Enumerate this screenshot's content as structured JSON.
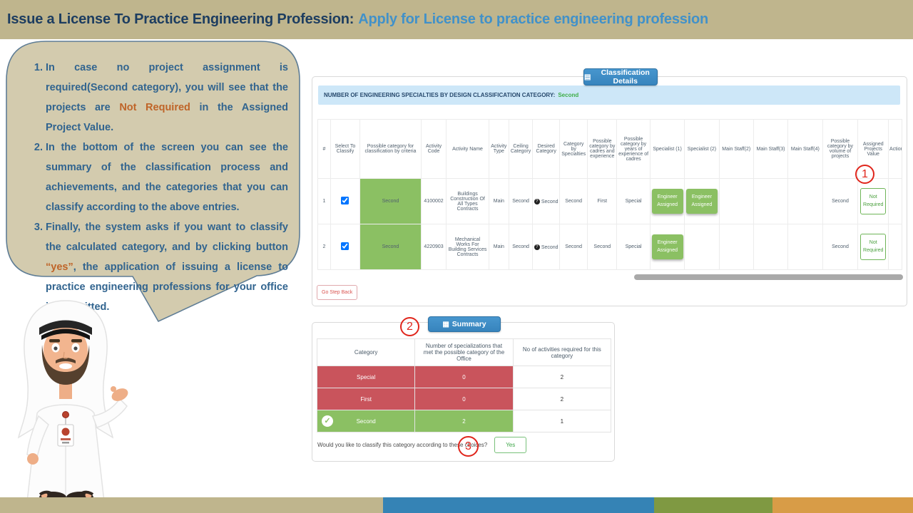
{
  "header": {
    "title_prefix": "Issue a License To Practice Engineering Profession:",
    "title_suffix": "Apply for License to practice engineering profession"
  },
  "speech_bubble": {
    "items": [
      {
        "segments": [
          {
            "t": "In case  no project assignment is required(Second category), you will see  that the projects are "
          },
          {
            "t": "Not Required",
            "c": "accent"
          },
          {
            "t": " in the Assigned Project Value."
          }
        ]
      },
      {
        "segments": [
          {
            "t": "In the bottom of the screen you can see the summary of the classification process and achievements, and the categories that you can classify according to the above entries."
          }
        ]
      },
      {
        "segments": [
          {
            "t": "Finally, the system asks if you want to classify the calculated category, and by clicking button "
          },
          {
            "t": "“yes”",
            "c": "accent"
          },
          {
            "t": ", the application of issuing a license to practice engineering professions for your office is submitted."
          }
        ]
      }
    ]
  },
  "classification": {
    "panel_title": "Classification Details",
    "info_label": "NUMBER OF ENGINEERING SPECIALTIES BY DESIGN CLASSIFICATION CATEGORY:",
    "info_value": "Second",
    "columns": [
      "#",
      "Select To Classify",
      "Possible category for classification by criteria",
      "Activity Code",
      "Activity Name",
      "Activity Type",
      "Ceiling Category",
      "Desired Category",
      "Category by Specialties",
      "Possible category by cadres and experience",
      "Possible category by years of experience of cadres",
      "Specialist (1)",
      "Specialist (2)",
      "Main Staff(2)",
      "Main Staff(3)",
      "Main Staff(4)",
      "Possible category by volume of projects",
      "Assigned Projects Value",
      "Action"
    ],
    "rows": [
      {
        "num": "1",
        "selected": true,
        "possible_category": "Second",
        "activity_code": "4100002",
        "activity_name": "Buildings Construction Of All Types Contracts",
        "activity_type": "Main",
        "ceiling_category": "Second",
        "desired_category": "Second",
        "category_by_specialties": "Second",
        "possible_by_cadres": "First",
        "possible_by_years": "Special",
        "specialist1": "Engineer Assigned",
        "specialist2": "Engineer Assigned",
        "main_staff2": "",
        "main_staff3": "",
        "main_staff4": "",
        "possible_by_volume": "Second",
        "assigned_projects_value": "Not Required",
        "action": ""
      },
      {
        "num": "2",
        "selected": true,
        "possible_category": "Second",
        "activity_code": "4220903",
        "activity_name": "Mechanical Works For Building Services Contracts",
        "activity_type": "Main",
        "ceiling_category": "Second",
        "desired_category": "Second",
        "category_by_specialties": "Second",
        "possible_by_cadres": "Second",
        "possible_by_years": "Special",
        "specialist1": "Engineer Assigned",
        "specialist2": "",
        "main_staff2": "",
        "main_staff3": "",
        "main_staff4": "",
        "possible_by_volume": "Second",
        "assigned_projects_value": "Not Required",
        "action": ""
      }
    ],
    "back_button_label": "Go Step Back"
  },
  "summary": {
    "panel_title": "Summary",
    "columns": [
      "Category",
      "Number of specializations that met the possible category of the Office",
      "No of activities required for this category"
    ],
    "rows": [
      {
        "category": "Special",
        "count": "0",
        "required": "2",
        "status": "fail"
      },
      {
        "category": "First",
        "count": "0",
        "required": "2",
        "status": "fail"
      },
      {
        "category": "Second",
        "count": "2",
        "required": "1",
        "status": "pass"
      }
    ],
    "question": "Would you like to classify this category according to these choices?",
    "yes_label": "Yes"
  },
  "annotations": {
    "step1": "1",
    "step2": "2",
    "step3": "3"
  },
  "colors": {
    "green": "#8bc063",
    "red": "#c9545c",
    "blue": "#3a8fc7",
    "tan": "#bfb58d",
    "footer_blue": "#3583b5",
    "olive": "#7f9942",
    "orange": "#d89c47",
    "accent_text": "#bf6428",
    "bubble_fill": "#d3cbae"
  }
}
